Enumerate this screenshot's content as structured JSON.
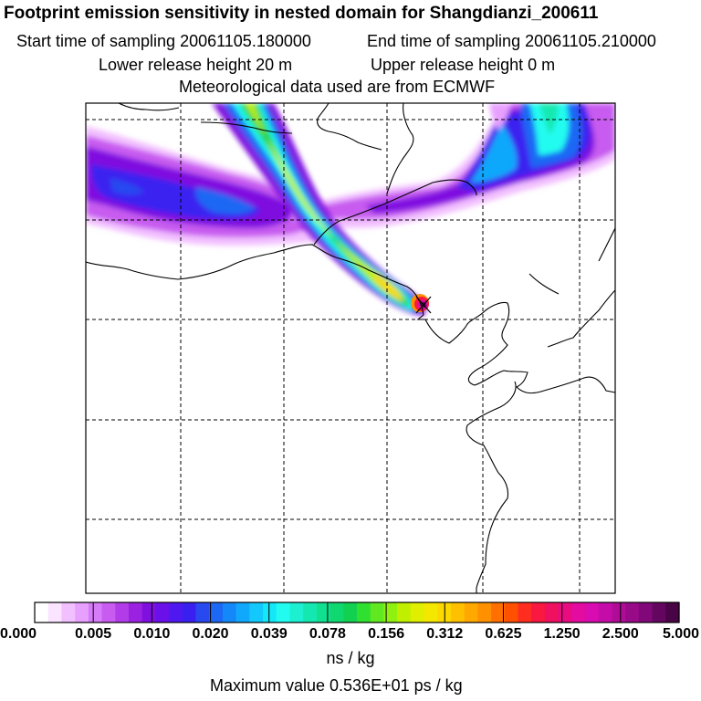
{
  "header": {
    "title": "Footprint emission sensitivity in nested domain for Shangdianzi_200611",
    "start_time": "Start time of sampling 20061105.180000",
    "end_time": "End time of sampling 20061105.210000",
    "lower_height": "Lower release height   20 m",
    "upper_height": "Upper release height    0 m",
    "met_data": "Meteorological data used are from ECMWF"
  },
  "footer": {
    "units": "ns / kg",
    "max_value": "Maximum value  0.536E+01 ps / kg"
  },
  "chart_data": {
    "type": "heatmap",
    "title": "Footprint emission sensitivity in nested domain for Shangdianzi_200611",
    "colorbar": {
      "label": "ns / kg",
      "tick_labels": [
        "0.000",
        "0.005",
        "0.010",
        "0.020",
        "0.039",
        "0.078",
        "0.156",
        "0.312",
        "0.625",
        "1.250",
        "2.500",
        "5.000"
      ],
      "colors": [
        "#ffffff",
        "#fbe4ff",
        "#f2c0ff",
        "#e8a0ff",
        "#d67cf8",
        "#c85cf0",
        "#b23ce8",
        "#9a22e0",
        "#8010e0",
        "#6a10e8",
        "#5018f0",
        "#3a20f0",
        "#2848f0",
        "#1c68f4",
        "#1488f8",
        "#10a8fc",
        "#12c8fc",
        "#14e8f8",
        "#22fcf0",
        "#1cf0d0",
        "#14e8b0",
        "#10e090",
        "#10d870",
        "#12d050",
        "#30e030",
        "#60e820",
        "#90f010",
        "#c0f000",
        "#e0ee00",
        "#f4e800",
        "#fcd800",
        "#ffc000",
        "#ffa800",
        "#ff9000",
        "#ff7000",
        "#ff5000",
        "#ff2c20",
        "#f81840",
        "#f01060",
        "#e80c80",
        "#e40ca0",
        "#d80cb0",
        "#c40ca8",
        "#b00c98",
        "#980a88",
        "#800878",
        "#640660",
        "#480444"
      ]
    },
    "grid_lines": 4,
    "receptor": "Shangdianzi",
    "max_value": "0.536E+01 ps / kg"
  }
}
